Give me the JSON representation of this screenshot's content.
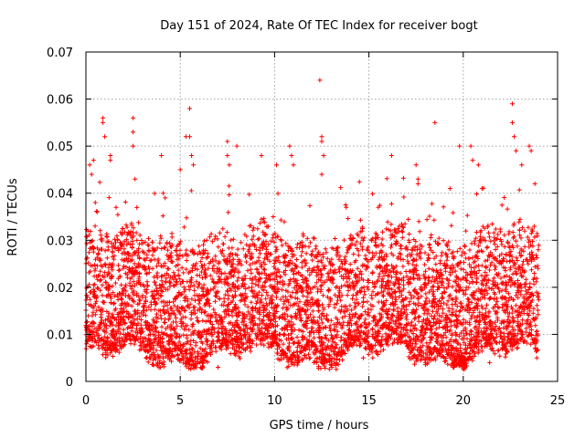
{
  "chart_data": {
    "type": "scatter",
    "title": "Day 151 of 2024, Rate Of TEC Index for receiver bogt",
    "xlabel": "GPS time / hours",
    "ylabel": "ROTI / TECUs",
    "xlim": [
      0,
      25
    ],
    "ylim": [
      0,
      0.07
    ],
    "xticks": [
      "0",
      "5",
      "10",
      "15",
      "20",
      "25"
    ],
    "yticks": [
      "0",
      "0.01",
      "0.02",
      "0.03",
      "0.04",
      "0.05",
      "0.06",
      "0.07"
    ],
    "grid": true,
    "marker": "+",
    "color": "#ff0000",
    "series": [
      {
        "name": "ROTI",
        "x_range": [
          0,
          24
        ],
        "typical_range": [
          0.005,
          0.03
        ],
        "points": [
          [
            0.1,
            0.032
          ],
          [
            0.2,
            0.046
          ],
          [
            0.3,
            0.044
          ],
          [
            0.4,
            0.047
          ],
          [
            0.5,
            0.038
          ],
          [
            0.6,
            0.036
          ],
          [
            0.9,
            0.056
          ],
          [
            0.9,
            0.055
          ],
          [
            1.0,
            0.052
          ],
          [
            1.3,
            0.048
          ],
          [
            1.3,
            0.047
          ],
          [
            1.6,
            0.037
          ],
          [
            2.5,
            0.056
          ],
          [
            2.5,
            0.053
          ],
          [
            2.5,
            0.05
          ],
          [
            2.6,
            0.043
          ],
          [
            4.0,
            0.048
          ],
          [
            4.1,
            0.04
          ],
          [
            4.2,
            0.039
          ],
          [
            5.0,
            0.045
          ],
          [
            5.3,
            0.052
          ],
          [
            5.5,
            0.058
          ],
          [
            5.5,
            0.052
          ],
          [
            5.6,
            0.048
          ],
          [
            5.7,
            0.046
          ],
          [
            7.5,
            0.051
          ],
          [
            7.5,
            0.048
          ],
          [
            7.6,
            0.046
          ],
          [
            8.0,
            0.05
          ],
          [
            9.3,
            0.048
          ],
          [
            10.1,
            0.046
          ],
          [
            10.8,
            0.05
          ],
          [
            10.9,
            0.048
          ],
          [
            11.0,
            0.046
          ],
          [
            12.4,
            0.064
          ],
          [
            12.5,
            0.052
          ],
          [
            12.5,
            0.051
          ],
          [
            12.6,
            0.048
          ],
          [
            12.5,
            0.044
          ],
          [
            13.8,
            0.037
          ],
          [
            15.5,
            0.037
          ],
          [
            16.2,
            0.048
          ],
          [
            17.5,
            0.046
          ],
          [
            17.6,
            0.043
          ],
          [
            17.6,
            0.042
          ],
          [
            18.5,
            0.055
          ],
          [
            19.3,
            0.041
          ],
          [
            19.8,
            0.05
          ],
          [
            20.4,
            0.05
          ],
          [
            20.5,
            0.047
          ],
          [
            20.8,
            0.046
          ],
          [
            21.0,
            0.041
          ],
          [
            22.6,
            0.059
          ],
          [
            22.6,
            0.055
          ],
          [
            22.7,
            0.052
          ],
          [
            22.8,
            0.049
          ],
          [
            23.1,
            0.046
          ],
          [
            23.5,
            0.05
          ],
          [
            23.6,
            0.049
          ],
          [
            23.8,
            0.042
          ],
          [
            7.0,
            0.003
          ],
          [
            3.8,
            0.004
          ],
          [
            14.7,
            0.005
          ],
          [
            18.0,
            0.004
          ],
          [
            21.4,
            0.004
          ],
          [
            23.9,
            0.005
          ]
        ]
      }
    ]
  }
}
